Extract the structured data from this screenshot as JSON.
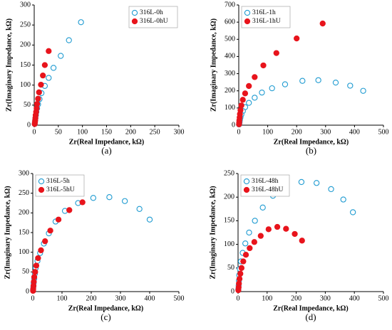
{
  "chart_data": [
    {
      "type": "scatter",
      "caption": "(a)",
      "xlabel": "Zr(Real Impedance, kΩ)",
      "ylabel": "Zr(Imaginary Impedance, kΩ)",
      "xlim": [
        0,
        300
      ],
      "xticks": [
        0,
        50,
        100,
        150,
        200,
        250,
        300
      ],
      "ylim": [
        0,
        300
      ],
      "yticks": [
        0,
        50,
        100,
        150,
        200,
        250,
        300
      ],
      "legend": "top-right",
      "series": [
        {
          "name": "316L-0h",
          "color": "#1f9bd1",
          "marker": "open",
          "x": [
            97,
            72,
            55,
            40,
            30,
            22,
            15,
            11,
            8,
            6,
            4.5,
            3.5,
            2.5,
            2,
            1.5,
            1
          ],
          "values": [
            257,
            212,
            173,
            143,
            118,
            98,
            80,
            65,
            52,
            42,
            33,
            25,
            18,
            12,
            7,
            3
          ]
        },
        {
          "name": "316L-0hU",
          "color": "#e8141c",
          "marker": "filled",
          "x": [
            30,
            22,
            18,
            14,
            10,
            8,
            6,
            5,
            4,
            3,
            2.5,
            2,
            1.5,
            1
          ],
          "values": [
            185,
            150,
            124,
            101,
            82,
            66,
            53,
            42,
            33,
            25,
            18,
            12,
            7,
            3
          ]
        }
      ]
    },
    {
      "type": "scatter",
      "caption": "(b)",
      "xlabel": "Zr(Real Impedance, kΩ)",
      "ylabel": "Zr(Imaginary Impedance, kΩ)",
      "xlim": [
        0,
        500
      ],
      "xticks": [
        0,
        100,
        200,
        300,
        400,
        500
      ],
      "ylim": [
        0,
        700
      ],
      "yticks": [
        0,
        100,
        200,
        300,
        400,
        500,
        600,
        700
      ],
      "legend": "top-left",
      "series": [
        {
          "name": "316L-1h",
          "color": "#1f9bd1",
          "marker": "open",
          "x": [
            430,
            385,
            335,
            275,
            220,
            160,
            115,
            80,
            55,
            35,
            22,
            14,
            9,
            6,
            4,
            3,
            2,
            1
          ],
          "values": [
            200,
            230,
            248,
            262,
            258,
            238,
            215,
            190,
            160,
            130,
            105,
            82,
            62,
            45,
            32,
            20,
            10,
            4
          ]
        },
        {
          "name": "316L-1hU",
          "color": "#e8141c",
          "marker": "filled",
          "x": [
            290,
            200,
            130,
            85,
            55,
            35,
            22,
            14,
            9,
            6,
            4,
            3,
            2,
            1.5,
            1
          ],
          "values": [
            592,
            505,
            420,
            348,
            280,
            228,
            185,
            148,
            115,
            88,
            65,
            45,
            28,
            15,
            5
          ]
        }
      ]
    },
    {
      "type": "scatter",
      "caption": "(c)",
      "xlabel": "Zr(Real Impedance, kΩ)",
      "ylabel": "Zr(Imaginary Impedance, kΩ)",
      "xlim": [
        0,
        500
      ],
      "xticks": [
        0,
        100,
        200,
        300,
        400,
        500
      ],
      "ylim": [
        0,
        300
      ],
      "yticks": [
        0,
        50,
        100,
        150,
        200,
        250,
        300
      ],
      "legend": "top-left",
      "series": [
        {
          "name": "316L-5h",
          "color": "#1f9bd1",
          "marker": "open",
          "x": [
            400,
            365,
            315,
            262,
            207,
            155,
            110,
            78,
            55,
            38,
            25,
            16,
            10,
            7,
            5,
            3,
            2,
            1
          ],
          "values": [
            183,
            210,
            230,
            240,
            238,
            225,
            205,
            178,
            148,
            122,
            98,
            78,
            60,
            45,
            33,
            22,
            12,
            5
          ]
        },
        {
          "name": "316L-5hU",
          "color": "#e8141c",
          "marker": "filled",
          "x": [
            170,
            125,
            88,
            60,
            42,
            28,
            18,
            12,
            8,
            5,
            3.5,
            2.5,
            1.5,
            1
          ],
          "values": [
            227,
            207,
            183,
            155,
            128,
            105,
            85,
            66,
            50,
            37,
            25,
            15,
            7,
            2
          ]
        }
      ]
    },
    {
      "type": "scatter",
      "caption": "(d)",
      "xlabel": "Zr(Real Impedance, kΩ)",
      "ylabel": "Zr(Imaginary Impedance, kΩ)",
      "xlim": [
        0,
        500
      ],
      "xticks": [
        0,
        100,
        200,
        300,
        400,
        500
      ],
      "ylim": [
        0,
        250
      ],
      "yticks": [
        0,
        50,
        100,
        150,
        200,
        250
      ],
      "legend": "top-left",
      "series": [
        {
          "name": "316L-48h",
          "color": "#1f9bd1",
          "marker": "open",
          "x": [
            395,
            362,
            320,
            270,
            218,
            165,
            120,
            85,
            58,
            38,
            25,
            16,
            10,
            6,
            4,
            3,
            2,
            1
          ],
          "values": [
            168,
            195,
            217,
            230,
            232,
            222,
            203,
            178,
            150,
            125,
            102,
            82,
            64,
            48,
            35,
            23,
            13,
            5
          ]
        },
        {
          "name": "316L-48hU",
          "color": "#e8141c",
          "marker": "filled",
          "x": [
            220,
            195,
            165,
            135,
            105,
            78,
            56,
            40,
            27,
            18,
            12,
            8,
            5,
            3,
            2,
            1
          ],
          "values": [
            108,
            122,
            133,
            137,
            132,
            118,
            105,
            92,
            78,
            64,
            50,
            38,
            27,
            17,
            9,
            3
          ]
        }
      ]
    }
  ]
}
